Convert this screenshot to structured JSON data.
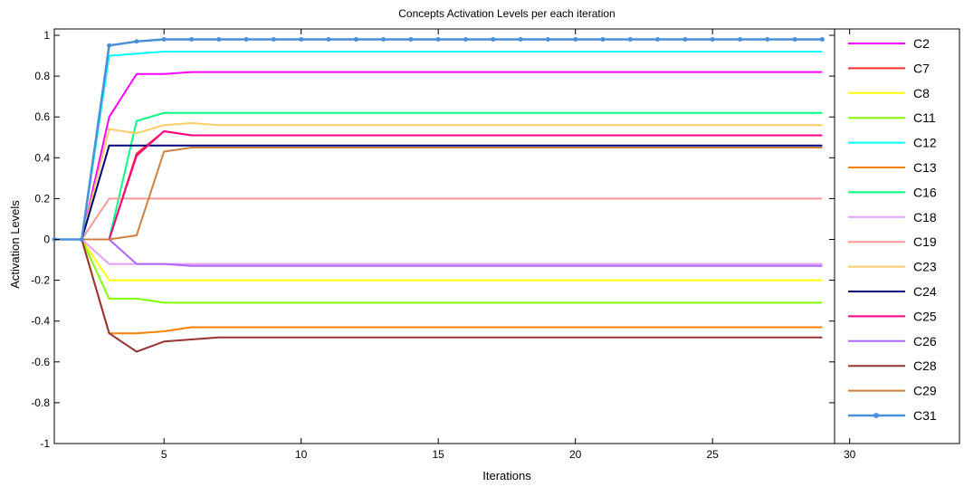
{
  "chart_data": {
    "type": "line",
    "title": "Concepts Activation Levels per  each iteration",
    "xlabel": "Iterations",
    "ylabel": "Activation Levels",
    "xlim": [
      1,
      30
    ],
    "ylim": [
      -1,
      1
    ],
    "xticks": [
      5,
      10,
      15,
      20,
      25,
      30
    ],
    "yticks": [
      1,
      0.8,
      0.6,
      0.4,
      0.2,
      0,
      -0.2,
      -0.4,
      -0.6,
      -0.8,
      -1
    ],
    "ytick_labels": [
      "1",
      "0.8",
      "0.6",
      "0.4",
      "0.2",
      "0",
      "-0.2",
      "-0.4",
      "-0.6",
      "-0.8",
      "-1"
    ],
    "grid": false,
    "legend_position": "right",
    "x": [
      1,
      2,
      3,
      4,
      5,
      6,
      7,
      8,
      9,
      10,
      11,
      12,
      13,
      14,
      15,
      16,
      17,
      18,
      19,
      20,
      21,
      22,
      23,
      24,
      25,
      26,
      27,
      28,
      29
    ],
    "series": [
      {
        "name": "C2",
        "color": "#ff00ff",
        "marker": false,
        "values": [
          0,
          0,
          0.6,
          0.81,
          0.81,
          0.82,
          0.82,
          0.82,
          0.82,
          0.82,
          0.82,
          0.82,
          0.82,
          0.82,
          0.82,
          0.82,
          0.82,
          0.82,
          0.82,
          0.82,
          0.82,
          0.82,
          0.82,
          0.82,
          0.82,
          0.82,
          0.82,
          0.82,
          0.82
        ]
      },
      {
        "name": "C7",
        "color": "#ff2a2a",
        "marker": false,
        "values": [
          0,
          0,
          0,
          0.42,
          0.53,
          0.51,
          0.51,
          0.51,
          0.51,
          0.51,
          0.51,
          0.51,
          0.51,
          0.51,
          0.51,
          0.51,
          0.51,
          0.51,
          0.51,
          0.51,
          0.51,
          0.51,
          0.51,
          0.51,
          0.51,
          0.51,
          0.51,
          0.51,
          0.51
        ]
      },
      {
        "name": "C8",
        "color": "#ffff00",
        "marker": false,
        "values": [
          0,
          0,
          -0.2,
          -0.2,
          -0.2,
          -0.2,
          -0.2,
          -0.2,
          -0.2,
          -0.2,
          -0.2,
          -0.2,
          -0.2,
          -0.2,
          -0.2,
          -0.2,
          -0.2,
          -0.2,
          -0.2,
          -0.2,
          -0.2,
          -0.2,
          -0.2,
          -0.2,
          -0.2,
          -0.2,
          -0.2,
          -0.2,
          -0.2
        ]
      },
      {
        "name": "C11",
        "color": "#80ff00",
        "marker": false,
        "values": [
          0,
          0,
          -0.29,
          -0.29,
          -0.31,
          -0.31,
          -0.31,
          -0.31,
          -0.31,
          -0.31,
          -0.31,
          -0.31,
          -0.31,
          -0.31,
          -0.31,
          -0.31,
          -0.31,
          -0.31,
          -0.31,
          -0.31,
          -0.31,
          -0.31,
          -0.31,
          -0.31,
          -0.31,
          -0.31,
          -0.31,
          -0.31,
          -0.31
        ]
      },
      {
        "name": "C12",
        "color": "#00ffff",
        "marker": false,
        "values": [
          0,
          0,
          0.9,
          0.91,
          0.92,
          0.92,
          0.92,
          0.92,
          0.92,
          0.92,
          0.92,
          0.92,
          0.92,
          0.92,
          0.92,
          0.92,
          0.92,
          0.92,
          0.92,
          0.92,
          0.92,
          0.92,
          0.92,
          0.92,
          0.92,
          0.92,
          0.92,
          0.92,
          0.92
        ]
      },
      {
        "name": "C13",
        "color": "#ff7f00",
        "marker": false,
        "values": [
          0,
          0,
          -0.46,
          -0.46,
          -0.45,
          -0.43,
          -0.43,
          -0.43,
          -0.43,
          -0.43,
          -0.43,
          -0.43,
          -0.43,
          -0.43,
          -0.43,
          -0.43,
          -0.43,
          -0.43,
          -0.43,
          -0.43,
          -0.43,
          -0.43,
          -0.43,
          -0.43,
          -0.43,
          -0.43,
          -0.43,
          -0.43,
          -0.43
        ]
      },
      {
        "name": "C16",
        "color": "#00ff80",
        "marker": false,
        "values": [
          0,
          0,
          0,
          0.58,
          0.62,
          0.62,
          0.62,
          0.62,
          0.62,
          0.62,
          0.62,
          0.62,
          0.62,
          0.62,
          0.62,
          0.62,
          0.62,
          0.62,
          0.62,
          0.62,
          0.62,
          0.62,
          0.62,
          0.62,
          0.62,
          0.62,
          0.62,
          0.62,
          0.62
        ]
      },
      {
        "name": "C18",
        "color": "#e0a0ff",
        "marker": false,
        "values": [
          0,
          0,
          -0.12,
          -0.12,
          -0.12,
          -0.12,
          -0.12,
          -0.12,
          -0.12,
          -0.12,
          -0.12,
          -0.12,
          -0.12,
          -0.12,
          -0.12,
          -0.12,
          -0.12,
          -0.12,
          -0.12,
          -0.12,
          -0.12,
          -0.12,
          -0.12,
          -0.12,
          -0.12,
          -0.12,
          -0.12,
          -0.12,
          -0.12
        ]
      },
      {
        "name": "C19",
        "color": "#ff9999",
        "marker": false,
        "values": [
          0,
          0,
          0.2,
          0.2,
          0.2,
          0.2,
          0.2,
          0.2,
          0.2,
          0.2,
          0.2,
          0.2,
          0.2,
          0.2,
          0.2,
          0.2,
          0.2,
          0.2,
          0.2,
          0.2,
          0.2,
          0.2,
          0.2,
          0.2,
          0.2,
          0.2,
          0.2,
          0.2,
          0.2
        ]
      },
      {
        "name": "C23",
        "color": "#ffcc66",
        "marker": false,
        "values": [
          0,
          0,
          0.54,
          0.52,
          0.56,
          0.57,
          0.56,
          0.56,
          0.56,
          0.56,
          0.56,
          0.56,
          0.56,
          0.56,
          0.56,
          0.56,
          0.56,
          0.56,
          0.56,
          0.56,
          0.56,
          0.56,
          0.56,
          0.56,
          0.56,
          0.56,
          0.56,
          0.56,
          0.56
        ]
      },
      {
        "name": "C24",
        "color": "#000080",
        "marker": false,
        "values": [
          0,
          0,
          0.46,
          0.46,
          0.46,
          0.46,
          0.46,
          0.46,
          0.46,
          0.46,
          0.46,
          0.46,
          0.46,
          0.46,
          0.46,
          0.46,
          0.46,
          0.46,
          0.46,
          0.46,
          0.46,
          0.46,
          0.46,
          0.46,
          0.46,
          0.46,
          0.46,
          0.46,
          0.46
        ]
      },
      {
        "name": "C25",
        "color": "#ff0080",
        "marker": false,
        "values": [
          0,
          0,
          0,
          0.41,
          0.53,
          0.51,
          0.51,
          0.51,
          0.51,
          0.51,
          0.51,
          0.51,
          0.51,
          0.51,
          0.51,
          0.51,
          0.51,
          0.51,
          0.51,
          0.51,
          0.51,
          0.51,
          0.51,
          0.51,
          0.51,
          0.51,
          0.51,
          0.51,
          0.51
        ]
      },
      {
        "name": "C26",
        "color": "#b266ff",
        "marker": false,
        "values": [
          0,
          0,
          0,
          -0.12,
          -0.12,
          -0.13,
          -0.13,
          -0.13,
          -0.13,
          -0.13,
          -0.13,
          -0.13,
          -0.13,
          -0.13,
          -0.13,
          -0.13,
          -0.13,
          -0.13,
          -0.13,
          -0.13,
          -0.13,
          -0.13,
          -0.13,
          -0.13,
          -0.13,
          -0.13,
          -0.13,
          -0.13,
          -0.13
        ]
      },
      {
        "name": "C28",
        "color": "#993333",
        "marker": false,
        "values": [
          0,
          0,
          -0.46,
          -0.55,
          -0.5,
          -0.49,
          -0.48,
          -0.48,
          -0.48,
          -0.48,
          -0.48,
          -0.48,
          -0.48,
          -0.48,
          -0.48,
          -0.48,
          -0.48,
          -0.48,
          -0.48,
          -0.48,
          -0.48,
          -0.48,
          -0.48,
          -0.48,
          -0.48,
          -0.48,
          -0.48,
          -0.48,
          -0.48
        ]
      },
      {
        "name": "C29",
        "color": "#cc8040",
        "marker": false,
        "values": [
          0,
          0,
          0,
          0.02,
          0.43,
          0.45,
          0.45,
          0.45,
          0.45,
          0.45,
          0.45,
          0.45,
          0.45,
          0.45,
          0.45,
          0.45,
          0.45,
          0.45,
          0.45,
          0.45,
          0.45,
          0.45,
          0.45,
          0.45,
          0.45,
          0.45,
          0.45,
          0.45,
          0.45
        ]
      },
      {
        "name": "C31",
        "color": "#4a90d9",
        "marker": true,
        "values": [
          0,
          0,
          0.95,
          0.97,
          0.98,
          0.98,
          0.98,
          0.98,
          0.98,
          0.98,
          0.98,
          0.98,
          0.98,
          0.98,
          0.98,
          0.98,
          0.98,
          0.98,
          0.98,
          0.98,
          0.98,
          0.98,
          0.98,
          0.98,
          0.98,
          0.98,
          0.98,
          0.98,
          0.98
        ]
      }
    ]
  }
}
